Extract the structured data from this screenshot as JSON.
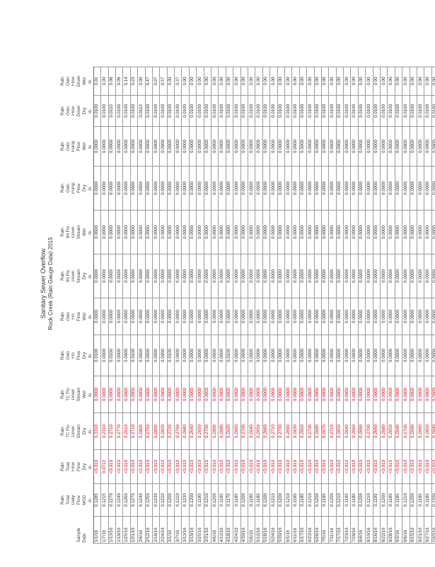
{
  "title": "Sanitary Sewer Overflow",
  "subtitle": "Rock Creek (Rain Gauge Data) 2015",
  "header_rows": [
    [
      "",
      "Rain",
      "Rain",
      "Rain",
      "Rain",
      "Rain",
      "Rain",
      "Rain",
      "Rain",
      "Rain",
      "Rain",
      "Rain",
      "Rain"
    ],
    [
      "",
      "Total",
      "Total",
      "TC Flo",
      "TC Flo",
      "Ovlo",
      "Ovlo",
      "90 Flo",
      "90 Flo",
      "Ovlo",
      "Ovlo",
      "Ovlo",
      "Ovlo"
    ],
    [
      "",
      "Daily",
      "Flow",
      "Down",
      "Down",
      "Flo",
      "Flo",
      "Down",
      "Down",
      "Pump",
      "Pump",
      "Flow",
      "Flow"
    ],
    [
      "Sample",
      "Flow",
      "Flow",
      "Stream",
      "Stream",
      "Flow",
      "Flow",
      "Stream",
      "Stream",
      "Flow",
      "Flow",
      "Down",
      "Down"
    ],
    [
      "Date",
      "MGD",
      "Dry",
      "Dry",
      "Wet",
      "Dry",
      "Wet",
      "Dry",
      "Wet",
      "Dry",
      "Wet",
      "Dry",
      "Wet"
    ],
    [
      "",
      "in.",
      "in.",
      "in.",
      "in.",
      "in.",
      "in.",
      "in.",
      "in.",
      "in.",
      "in.",
      "in.",
      "in."
    ]
  ],
  "rows": [
    [
      "1/1/16",
      "0.1285",
      "<0.010",
      "0.3310",
      "0.0000",
      "0.0100",
      "0.0000",
      "0.0000",
      "0.0000",
      "0.0000",
      "0.0000",
      "0.0100",
      "0.01"
    ],
    [
      "1/7/16",
      "0.1215",
      "0.0713",
      "0.2310",
      "0.0000",
      "0.0000",
      "0.0000",
      "0.0000",
      "0.0000",
      "0.0000",
      "0.0000",
      "0.0100",
      "0.00"
    ],
    [
      "1/13/16",
      "0.1270",
      "<0.010",
      "0.2710",
      "0.0000",
      "0.0100",
      "0.0000",
      "0.0000",
      "0.0000",
      "0.0000",
      "0.0000",
      "0.0110",
      "0.08"
    ],
    [
      "1/19/16",
      "0.1240",
      "<0.010",
      "0.2770",
      "0.0000",
      "0.0000",
      "0.0000",
      "0.0000",
      "0.0000",
      "0.0000",
      "0.0000",
      "0.0100",
      "0.09"
    ],
    [
      "1/25/16",
      "0.1260",
      "<0.010",
      "0.2610",
      "0.0000",
      "0.0000",
      "0.0000",
      "0.0000",
      "0.0000",
      "0.0000",
      "0.0000",
      "0.0100",
      "0.14"
    ],
    [
      "1/31/16",
      "0.1270",
      "<0.010",
      "0.2710",
      "0.0000",
      "0.0100",
      "0.0000",
      "0.0000",
      "0.0000",
      "0.0000",
      "0.0000",
      "0.0100",
      "0.23"
    ],
    [
      "2/6/16",
      "0.1240",
      "<0.010",
      "0.2800",
      "0.0000",
      "0.0000",
      "0.0000",
      "0.0000",
      "0.0000",
      "0.0000",
      "0.0000",
      "0.0110",
      "0.00"
    ],
    [
      "2/12/16",
      "0.1250",
      "<0.010",
      "0.2750",
      "0.0000",
      "0.0000",
      "0.0000",
      "0.0000",
      "0.0000",
      "0.0000",
      "0.0000",
      "0.0100",
      "0.47"
    ],
    [
      "2/18/16",
      "0.1230",
      "<0.010",
      "0.2800",
      "0.0000",
      "0.0000",
      "0.0000",
      "0.0000",
      "0.0000",
      "0.0000",
      "0.0000",
      "0.0100",
      "0.07"
    ],
    [
      "2/24/16",
      "0.1220",
      "<0.010",
      "0.2820",
      "0.0000",
      "0.0000",
      "0.0000",
      "0.0000",
      "0.0000",
      "0.0000",
      "0.0000",
      "0.0100",
      "0.57"
    ],
    [
      "3/1/16",
      "0.1200",
      "<0.010",
      "0.2720",
      "0.0000",
      "0.0100",
      "0.0000",
      "0.0000",
      "0.0000",
      "0.0000",
      "0.0000",
      "0.0100",
      "0.00"
    ],
    [
      "3/7/16",
      "0.1210",
      "<0.010",
      "0.2760",
      "0.0000",
      "0.0000",
      "0.0000",
      "0.0000",
      "0.0000",
      "0.0000",
      "0.0000",
      "0.0100",
      "0.37"
    ],
    [
      "3/13/16",
      "0.1230",
      "<0.010",
      "0.2680",
      "0.0000",
      "0.0000",
      "0.0000",
      "0.0000",
      "0.0000",
      "0.0000",
      "0.0000",
      "0.0100",
      "0.00"
    ],
    [
      "3/19/16",
      "0.1200",
      "<0.010",
      "0.2640",
      "0.0000",
      "0.0000",
      "0.0000",
      "0.0000",
      "0.0000",
      "0.0000",
      "0.0000",
      "0.0100",
      "0.00"
    ],
    [
      "3/25/16",
      "0.1190",
      "<0.010",
      "0.2650",
      "0.0000",
      "0.0000",
      "0.0000",
      "0.0000",
      "0.0000",
      "0.0000",
      "0.0000",
      "0.0100",
      "0.00"
    ],
    [
      "3/31/16",
      "0.1210",
      "<0.010",
      "0.2700",
      "0.0000",
      "0.0000",
      "0.0000",
      "0.0000",
      "0.0000",
      "0.0000",
      "0.0000",
      "0.0100",
      "0.00"
    ],
    [
      "4/6/16",
      "0.1200",
      "<0.010",
      "0.2800",
      "0.0000",
      "0.0000",
      "0.0000",
      "0.0000",
      "0.0000",
      "0.0000",
      "0.0000",
      "0.0100",
      "0.00"
    ],
    [
      "4/12/16",
      "0.1190",
      "<0.010",
      "0.2680",
      "0.0000",
      "0.0000",
      "0.0000",
      "0.0000",
      "0.0000",
      "0.0000",
      "0.0000",
      "0.0100",
      "0.00"
    ],
    [
      "4/18/16",
      "0.1170",
      "<0.010",
      "0.2620",
      "0.0000",
      "0.0100",
      "0.0000",
      "0.0000",
      "0.0000",
      "0.0000",
      "0.0000",
      "0.0100",
      "0.00"
    ],
    [
      "4/24/16",
      "0.1180",
      "<0.010",
      "0.2660",
      "0.0000",
      "0.0000",
      "0.0000",
      "0.0000",
      "0.0000",
      "0.0000",
      "0.0000",
      "0.0100",
      "0.00"
    ],
    [
      "4/30/16",
      "0.1200",
      "<0.010",
      "0.2700",
      "0.0000",
      "0.0000",
      "0.0000",
      "0.0000",
      "0.0000",
      "0.0000",
      "0.0000",
      "0.0100",
      "0.00"
    ],
    [
      "5/6/16",
      "0.1190",
      "<0.010",
      "0.2640",
      "0.0000",
      "0.0000",
      "0.0000",
      "0.0000",
      "0.0000",
      "0.0000",
      "0.0000",
      "0.0100",
      "0.00"
    ],
    [
      "5/12/16",
      "0.1180",
      "<0.010",
      "0.2650",
      "0.0000",
      "0.0000",
      "0.0000",
      "0.0000",
      "0.0000",
      "0.0000",
      "0.0000",
      "0.0100",
      "0.00"
    ],
    [
      "5/18/16",
      "0.1200",
      "<0.010",
      "0.2660",
      "0.0000",
      "0.0000",
      "0.0000",
      "0.0000",
      "0.0000",
      "0.0000",
      "0.0000",
      "0.0100",
      "0.00"
    ],
    [
      "5/24/16",
      "0.1210",
      "<0.010",
      "0.2710",
      "0.0000",
      "0.0000",
      "0.0000",
      "0.0000",
      "0.0000",
      "0.0000",
      "0.0000",
      "0.0100",
      "0.00"
    ],
    [
      "5/30/16",
      "0.1200",
      "<0.010",
      "0.2730",
      "0.0000",
      "0.0000",
      "0.0000",
      "0.0000",
      "0.0000",
      "0.0000",
      "0.0000",
      "0.0100",
      "0.00"
    ],
    [
      "6/5/16",
      "0.1210",
      "<0.010",
      "0.2690",
      "0.0000",
      "0.0000",
      "0.0000",
      "0.0000",
      "0.0000",
      "0.0000",
      "0.0000",
      "0.0100",
      "0.00"
    ],
    [
      "6/11/16",
      "0.1190",
      "<0.010",
      "0.2630",
      "0.0000",
      "0.0000",
      "0.0000",
      "0.0000",
      "0.0000",
      "0.0000",
      "0.0000",
      "0.0100",
      "0.00"
    ],
    [
      "6/17/16",
      "0.1180",
      "<0.010",
      "0.2660",
      "0.0000",
      "0.0000",
      "0.0000",
      "0.0000",
      "0.0000",
      "0.0000",
      "0.0000",
      "0.0100",
      "0.00"
    ],
    [
      "6/23/16",
      "0.1210",
      "<0.010",
      "0.2700",
      "0.0000",
      "0.0000",
      "0.0000",
      "0.0000",
      "0.0000",
      "0.0000",
      "0.0000",
      "0.0100",
      "0.00"
    ],
    [
      "6/29/16",
      "0.1200",
      "<0.010",
      "0.2680",
      "0.0000",
      "0.0000",
      "0.0000",
      "0.0000",
      "0.0000",
      "0.0000",
      "0.0000",
      "0.0100",
      "0.00"
    ],
    [
      "7/5/16",
      "0.1190",
      "<0.010",
      "0.2670",
      "0.0000",
      "0.0000",
      "0.0000",
      "0.0000",
      "0.0000",
      "0.0000",
      "0.0000",
      "0.0100",
      "0.00"
    ],
    [
      "7/11/16",
      "0.1200",
      "<0.010",
      "0.2710",
      "0.0000",
      "0.0000",
      "0.0000",
      "0.0000",
      "0.0000",
      "0.0000",
      "0.0000",
      "0.0100",
      "0.00"
    ],
    [
      "7/17/16",
      "0.1210",
      "<0.010",
      "0.2650",
      "0.0000",
      "0.0000",
      "0.0000",
      "0.0000",
      "0.0000",
      "0.0000",
      "0.0000",
      "0.0100",
      "0.00"
    ],
    [
      "7/23/16",
      "0.1190",
      "<0.010",
      "0.2640",
      "0.0000",
      "0.0000",
      "0.0000",
      "0.0000",
      "0.0000",
      "0.0000",
      "0.0000",
      "0.0100",
      "0.00"
    ],
    [
      "7/29/16",
      "0.1180",
      "<0.010",
      "0.2660",
      "0.0000",
      "0.0000",
      "0.0000",
      "0.0000",
      "0.0000",
      "0.0000",
      "0.0000",
      "0.0100",
      "0.00"
    ],
    [
      "8/4/16",
      "0.1200",
      "<0.010",
      "0.2690",
      "0.0000",
      "0.0000",
      "0.0000",
      "0.0000",
      "0.0000",
      "0.0000",
      "0.0000",
      "0.0100",
      "0.00"
    ],
    [
      "8/10/16",
      "0.1210",
      "<0.010",
      "0.2700",
      "0.0000",
      "0.0000",
      "0.0000",
      "0.0000",
      "0.0000",
      "0.0000",
      "0.0000",
      "0.0100",
      "0.00"
    ],
    [
      "8/16/16",
      "0.1190",
      "<0.010",
      "0.2660",
      "0.0000",
      "0.0000",
      "0.0000",
      "0.0000",
      "0.0000",
      "0.0000",
      "0.0000",
      "0.0100",
      "0.00"
    ],
    [
      "8/22/16",
      "0.1200",
      "<0.010",
      "0.2680",
      "0.0000",
      "0.0000",
      "0.0000",
      "0.0000",
      "0.0000",
      "0.0000",
      "0.0000",
      "0.0100",
      "0.00"
    ],
    [
      "8/28/16",
      "0.1180",
      "<0.010",
      "0.2650",
      "0.0000",
      "0.0000",
      "0.0000",
      "0.0000",
      "0.0000",
      "0.0000",
      "0.0000",
      "0.0100",
      "0.00"
    ],
    [
      "9/3/16",
      "0.1190",
      "<0.010",
      "0.2640",
      "0.0000",
      "0.0000",
      "0.0000",
      "0.0000",
      "0.0000",
      "0.0000",
      "0.0000",
      "0.0100",
      "0.00"
    ],
    [
      "9/9/16",
      "0.1210",
      "<0.010",
      "0.2700",
      "0.0000",
      "0.0000",
      "0.0000",
      "0.0000",
      "0.0000",
      "0.0000",
      "0.0000",
      "0.0100",
      "0.00"
    ],
    [
      "9/15/16",
      "0.1200",
      "<0.010",
      "0.2690",
      "0.0000",
      "0.0000",
      "0.0000",
      "0.0000",
      "0.0000",
      "0.0000",
      "0.0000",
      "0.0100",
      "0.00"
    ],
    [
      "9/21/16",
      "0.1190",
      "<0.010",
      "0.2660",
      "0.0000",
      "0.0000",
      "0.0000",
      "0.0000",
      "0.0000",
      "0.0000",
      "0.0000",
      "0.0100",
      "0.00"
    ],
    [
      "9/27/16",
      "0.1180",
      "<0.010",
      "0.2650",
      "0.0000",
      "0.0000",
      "0.0000",
      "0.0000",
      "0.0000",
      "0.0000",
      "0.0000",
      "0.0100",
      "0.00"
    ],
    [
      "10/3/16",
      "0.1200",
      "<0.010",
      "0.2680",
      "0.0000",
      "0.0000",
      "0.0000",
      "0.0000",
      "0.0000",
      "0.0000",
      "0.0000",
      "0.0100",
      "0.00"
    ],
    [
      "10/9/16",
      "0.1210",
      "<0.010",
      "0.2700",
      "0.0000",
      "0.0000",
      "0.0000",
      "0.0000",
      "0.0000",
      "0.0000",
      "0.0000",
      "0.0100",
      "0.00"
    ],
    [
      "10/15/16",
      "0.1190",
      "<0.010",
      "0.2660",
      "0.0000",
      "0.0000",
      "0.0000",
      "0.0000",
      "0.0000",
      "0.0000",
      "0.0000",
      "0.0100",
      "0.00"
    ],
    [
      "10/21/16",
      "0.1180",
      "<0.010",
      "0.2640",
      "0.0000",
      "0.0000",
      "0.0000",
      "0.0000",
      "0.0000",
      "0.0000",
      "0.0000",
      "0.0100",
      "0.00"
    ]
  ],
  "red_columns": [
    2,
    3,
    4
  ]
}
